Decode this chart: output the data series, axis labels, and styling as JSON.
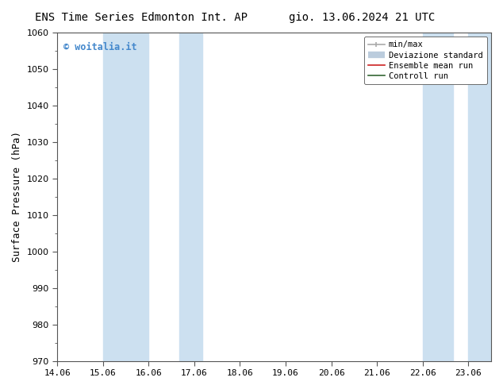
{
  "title_left": "ENS Time Series Edmonton Int. AP",
  "title_right": "gio. 13.06.2024 21 UTC",
  "ylabel": "Surface Pressure (hPa)",
  "ylim": [
    970,
    1060
  ],
  "yticks": [
    970,
    980,
    990,
    1000,
    1010,
    1020,
    1030,
    1040,
    1050,
    1060
  ],
  "xlim_start": 0,
  "xlim_end": 9.5,
  "xtick_labels": [
    "14.06",
    "15.06",
    "16.06",
    "17.06",
    "18.06",
    "19.06",
    "20.06",
    "21.06",
    "22.06",
    "23.06"
  ],
  "xtick_positions": [
    0,
    1,
    2,
    3,
    4,
    5,
    6,
    7,
    8,
    9
  ],
  "shaded_bands": [
    {
      "x_start": 1,
      "x_end": 2
    },
    {
      "x_start": 2.67,
      "x_end": 3.17
    },
    {
      "x_start": 8,
      "x_end": 8.67
    },
    {
      "x_start": 9,
      "x_end": 9.5
    }
  ],
  "shade_color": "#cce0f0",
  "background_color": "#ffffff",
  "watermark_text": "© woitalia.it",
  "watermark_color": "#4488cc",
  "legend_minmax_color": "#aaaaaa",
  "legend_dev_color": "#bbccdd",
  "legend_ens_color": "#cc2222",
  "legend_ctrl_color": "#336633",
  "title_fontsize": 10,
  "tick_fontsize": 8,
  "ylabel_fontsize": 9,
  "spine_color": "#555555",
  "figsize": [
    6.34,
    4.9
  ],
  "dpi": 100
}
